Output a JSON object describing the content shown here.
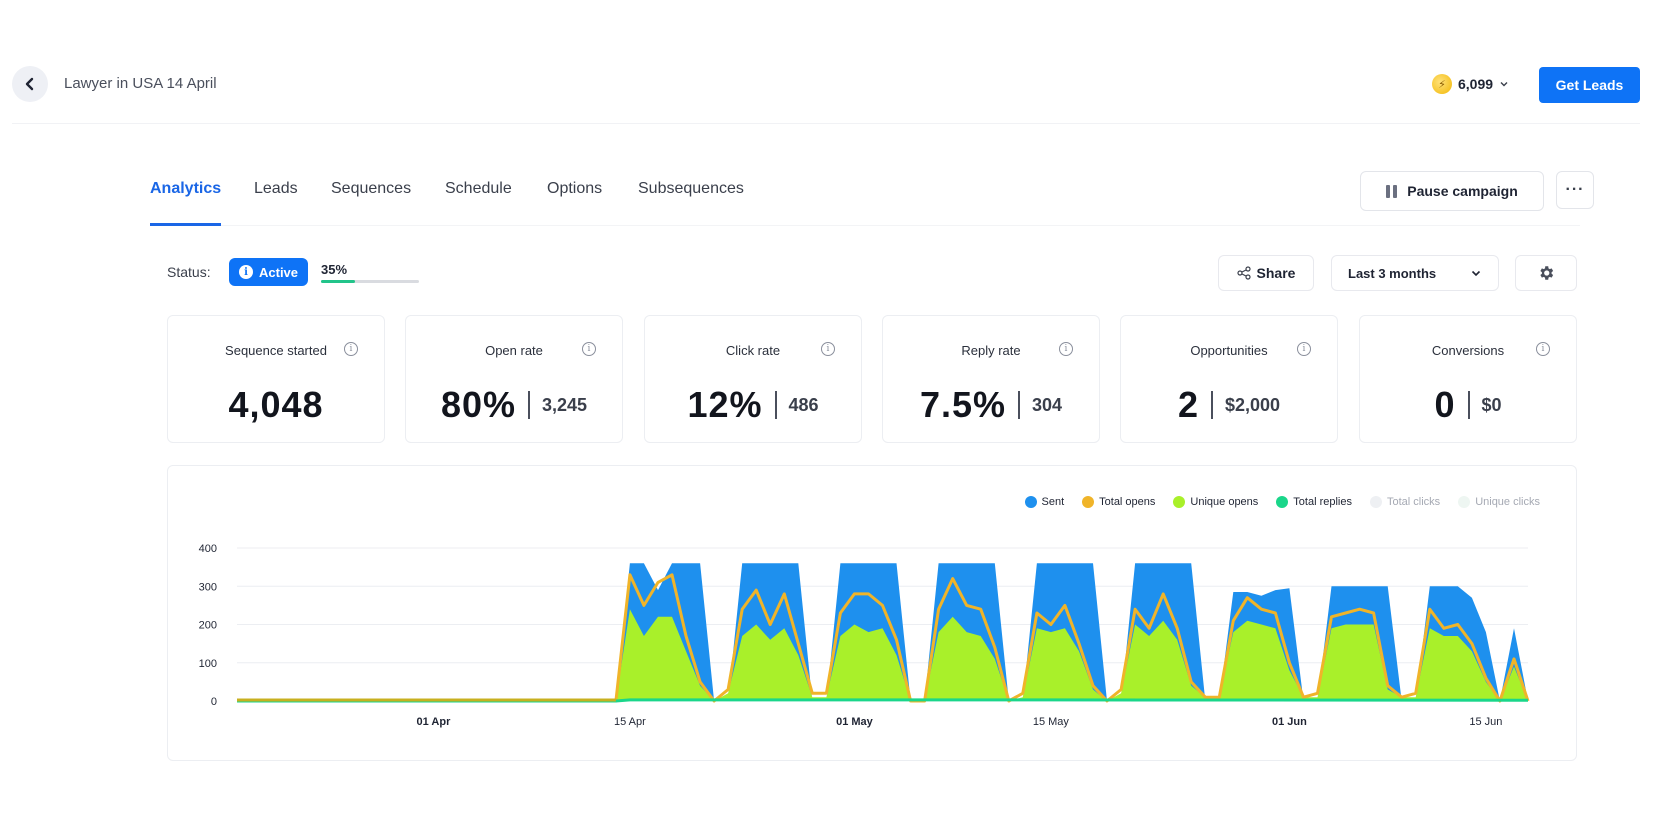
{
  "header": {
    "title": "Lawyer in USA 14 April",
    "credits": "6,099",
    "get_leads_label": "Get Leads"
  },
  "tabs": [
    {
      "label": "Analytics",
      "active": true
    },
    {
      "label": "Leads"
    },
    {
      "label": "Sequences"
    },
    {
      "label": "Schedule"
    },
    {
      "label": "Options"
    },
    {
      "label": "Subsequences"
    }
  ],
  "actions": {
    "pause_label": "Pause campaign",
    "more_label": "···"
  },
  "status": {
    "label": "Status:",
    "badge": "Active",
    "progress_text": "35%",
    "progress": 0.35
  },
  "toolbar": {
    "share_label": "Share",
    "range_label": "Last 3 months"
  },
  "stats": [
    {
      "label": "Sequence started",
      "value": "4,048",
      "secondary": ""
    },
    {
      "label": "Open rate",
      "value": "80%",
      "secondary": "3,245"
    },
    {
      "label": "Click rate",
      "value": "12%",
      "secondary": "486"
    },
    {
      "label": "Reply rate",
      "value": "7.5%",
      "secondary": "304"
    },
    {
      "label": "Opportunities",
      "value": "2",
      "secondary": "$2,000"
    },
    {
      "label": "Conversions",
      "value": "0",
      "secondary": "$0"
    }
  ],
  "colors": {
    "accent": "#0e73f6",
    "sent": "#1e90ee",
    "total_opens": "#f0b429",
    "unique_opens": "#a9f02a",
    "total_replies": "#1ad68a",
    "progress": "#22c48a"
  },
  "chart_data": {
    "type": "area",
    "x_axis": {
      "type": "date",
      "ticks": [
        "01 Apr",
        "15 Apr",
        "01 May",
        "15 May",
        "01 Jun",
        "15 Jun"
      ],
      "bold_ticks": [
        "01 Apr",
        "01 May",
        "01 Jun"
      ],
      "range": [
        "2024-03-18",
        "2024-06-18"
      ]
    },
    "y_axis": {
      "ticks": [
        "0",
        "100",
        "200",
        "300",
        "400"
      ],
      "ylim": [
        0,
        400
      ]
    },
    "grid": true,
    "legend": [
      {
        "name": "Sent",
        "color": "#1e90ee",
        "active": true
      },
      {
        "name": "Total opens",
        "color": "#f0b429",
        "active": true
      },
      {
        "name": "Unique opens",
        "color": "#a9f02a",
        "active": true
      },
      {
        "name": "Total replies",
        "color": "#1ad68a",
        "active": true
      },
      {
        "name": "Total clicks",
        "color": "#eef0f3",
        "active": false
      },
      {
        "name": "Unique clicks",
        "color": "#eef6f2",
        "active": false
      }
    ],
    "legend_position": "top-right",
    "series": [
      {
        "name": "Sent",
        "points": [
          [
            "2024-03-18",
            0
          ],
          [
            "2024-04-14",
            0
          ],
          [
            "2024-04-15",
            360
          ],
          [
            "2024-04-16",
            360
          ],
          [
            "2024-04-17",
            290
          ],
          [
            "2024-04-18",
            360
          ],
          [
            "2024-04-20",
            360
          ],
          [
            "2024-04-21",
            0
          ],
          [
            "2024-04-22",
            0
          ],
          [
            "2024-04-23",
            360
          ],
          [
            "2024-04-27",
            360
          ],
          [
            "2024-04-28",
            0
          ],
          [
            "2024-04-29",
            0
          ],
          [
            "2024-04-30",
            360
          ],
          [
            "2024-05-04",
            360
          ],
          [
            "2024-05-05",
            0
          ],
          [
            "2024-05-06",
            0
          ],
          [
            "2024-05-07",
            360
          ],
          [
            "2024-05-11",
            360
          ],
          [
            "2024-05-12",
            0
          ],
          [
            "2024-05-13",
            0
          ],
          [
            "2024-05-14",
            360
          ],
          [
            "2024-05-18",
            360
          ],
          [
            "2024-05-19",
            0
          ],
          [
            "2024-05-20",
            0
          ],
          [
            "2024-05-21",
            360
          ],
          [
            "2024-05-25",
            360
          ],
          [
            "2024-05-26",
            0
          ],
          [
            "2024-05-27",
            0
          ],
          [
            "2024-05-28",
            285
          ],
          [
            "2024-05-29",
            285
          ],
          [
            "2024-05-30",
            275
          ],
          [
            "2024-05-31",
            290
          ],
          [
            "2024-06-01",
            295
          ],
          [
            "2024-06-02",
            0
          ],
          [
            "2024-06-03",
            0
          ],
          [
            "2024-06-04",
            300
          ],
          [
            "2024-06-08",
            300
          ],
          [
            "2024-06-09",
            0
          ],
          [
            "2024-06-10",
            0
          ],
          [
            "2024-06-11",
            300
          ],
          [
            "2024-06-13",
            300
          ],
          [
            "2024-06-14",
            270
          ],
          [
            "2024-06-15",
            180
          ],
          [
            "2024-06-16",
            0
          ],
          [
            "2024-06-17",
            190
          ],
          [
            "2024-06-18",
            0
          ]
        ]
      },
      {
        "name": "Total opens",
        "points": [
          [
            "2024-03-18",
            0
          ],
          [
            "2024-04-14",
            0
          ],
          [
            "2024-04-15",
            330
          ],
          [
            "2024-04-16",
            250
          ],
          [
            "2024-04-17",
            310
          ],
          [
            "2024-04-18",
            330
          ],
          [
            "2024-04-19",
            170
          ],
          [
            "2024-04-20",
            50
          ],
          [
            "2024-04-21",
            0
          ],
          [
            "2024-04-22",
            30
          ],
          [
            "2024-04-23",
            240
          ],
          [
            "2024-04-24",
            290
          ],
          [
            "2024-04-25",
            200
          ],
          [
            "2024-04-26",
            280
          ],
          [
            "2024-04-27",
            150
          ],
          [
            "2024-04-28",
            20
          ],
          [
            "2024-04-29",
            20
          ],
          [
            "2024-04-30",
            230
          ],
          [
            "2024-05-01",
            280
          ],
          [
            "2024-05-02",
            280
          ],
          [
            "2024-05-03",
            250
          ],
          [
            "2024-05-04",
            160
          ],
          [
            "2024-05-05",
            0
          ],
          [
            "2024-05-06",
            0
          ],
          [
            "2024-05-07",
            240
          ],
          [
            "2024-05-08",
            320
          ],
          [
            "2024-05-09",
            250
          ],
          [
            "2024-05-10",
            240
          ],
          [
            "2024-05-11",
            140
          ],
          [
            "2024-05-12",
            0
          ],
          [
            "2024-05-13",
            20
          ],
          [
            "2024-05-14",
            230
          ],
          [
            "2024-05-15",
            200
          ],
          [
            "2024-05-16",
            250
          ],
          [
            "2024-05-17",
            150
          ],
          [
            "2024-05-18",
            40
          ],
          [
            "2024-05-19",
            0
          ],
          [
            "2024-05-20",
            30
          ],
          [
            "2024-05-21",
            240
          ],
          [
            "2024-05-22",
            190
          ],
          [
            "2024-05-23",
            280
          ],
          [
            "2024-05-24",
            190
          ],
          [
            "2024-05-25",
            50
          ],
          [
            "2024-05-26",
            10
          ],
          [
            "2024-05-27",
            10
          ],
          [
            "2024-05-28",
            210
          ],
          [
            "2024-05-29",
            270
          ],
          [
            "2024-05-30",
            240
          ],
          [
            "2024-05-31",
            230
          ],
          [
            "2024-06-01",
            100
          ],
          [
            "2024-06-02",
            10
          ],
          [
            "2024-06-03",
            20
          ],
          [
            "2024-06-04",
            220
          ],
          [
            "2024-06-05",
            230
          ],
          [
            "2024-06-06",
            240
          ],
          [
            "2024-06-07",
            230
          ],
          [
            "2024-06-08",
            40
          ],
          [
            "2024-06-09",
            10
          ],
          [
            "2024-06-10",
            20
          ],
          [
            "2024-06-11",
            240
          ],
          [
            "2024-06-12",
            190
          ],
          [
            "2024-06-13",
            200
          ],
          [
            "2024-06-14",
            150
          ],
          [
            "2024-06-15",
            60
          ],
          [
            "2024-06-16",
            0
          ],
          [
            "2024-06-17",
            110
          ],
          [
            "2024-06-18",
            0
          ]
        ]
      },
      {
        "name": "Unique opens",
        "points": [
          [
            "2024-03-18",
            0
          ],
          [
            "2024-04-14",
            0
          ],
          [
            "2024-04-15",
            240
          ],
          [
            "2024-04-16",
            170
          ],
          [
            "2024-04-17",
            220
          ],
          [
            "2024-04-18",
            220
          ],
          [
            "2024-04-19",
            130
          ],
          [
            "2024-04-20",
            40
          ],
          [
            "2024-04-21",
            0
          ],
          [
            "2024-04-22",
            20
          ],
          [
            "2024-04-23",
            170
          ],
          [
            "2024-04-24",
            200
          ],
          [
            "2024-04-25",
            160
          ],
          [
            "2024-04-26",
            190
          ],
          [
            "2024-04-27",
            120
          ],
          [
            "2024-04-28",
            10
          ],
          [
            "2024-04-29",
            10
          ],
          [
            "2024-04-30",
            170
          ],
          [
            "2024-05-01",
            200
          ],
          [
            "2024-05-02",
            180
          ],
          [
            "2024-05-03",
            190
          ],
          [
            "2024-05-04",
            120
          ],
          [
            "2024-05-05",
            0
          ],
          [
            "2024-05-06",
            0
          ],
          [
            "2024-05-07",
            180
          ],
          [
            "2024-05-08",
            220
          ],
          [
            "2024-05-09",
            180
          ],
          [
            "2024-05-10",
            170
          ],
          [
            "2024-05-11",
            110
          ],
          [
            "2024-05-12",
            0
          ],
          [
            "2024-05-13",
            10
          ],
          [
            "2024-05-14",
            190
          ],
          [
            "2024-05-15",
            180
          ],
          [
            "2024-05-16",
            190
          ],
          [
            "2024-05-17",
            130
          ],
          [
            "2024-05-18",
            30
          ],
          [
            "2024-05-19",
            0
          ],
          [
            "2024-05-20",
            20
          ],
          [
            "2024-05-21",
            200
          ],
          [
            "2024-05-22",
            170
          ],
          [
            "2024-05-23",
            210
          ],
          [
            "2024-05-24",
            160
          ],
          [
            "2024-05-25",
            40
          ],
          [
            "2024-05-26",
            10
          ],
          [
            "2024-05-27",
            10
          ],
          [
            "2024-05-28",
            180
          ],
          [
            "2024-05-29",
            210
          ],
          [
            "2024-05-30",
            200
          ],
          [
            "2024-05-31",
            190
          ],
          [
            "2024-06-01",
            80
          ],
          [
            "2024-06-02",
            10
          ],
          [
            "2024-06-03",
            10
          ],
          [
            "2024-06-04",
            190
          ],
          [
            "2024-06-05",
            200
          ],
          [
            "2024-06-06",
            200
          ],
          [
            "2024-06-07",
            200
          ],
          [
            "2024-06-08",
            30
          ],
          [
            "2024-06-09",
            10
          ],
          [
            "2024-06-10",
            10
          ],
          [
            "2024-06-11",
            190
          ],
          [
            "2024-06-12",
            170
          ],
          [
            "2024-06-13",
            170
          ],
          [
            "2024-06-14",
            130
          ],
          [
            "2024-06-15",
            50
          ],
          [
            "2024-06-16",
            0
          ],
          [
            "2024-06-17",
            90
          ],
          [
            "2024-06-18",
            0
          ]
        ]
      },
      {
        "name": "Total replies",
        "points": [
          [
            "2024-03-18",
            0
          ],
          [
            "2024-04-14",
            0
          ],
          [
            "2024-04-15",
            3
          ],
          [
            "2024-05-15",
            3
          ],
          [
            "2024-06-18",
            2
          ]
        ]
      }
    ]
  }
}
